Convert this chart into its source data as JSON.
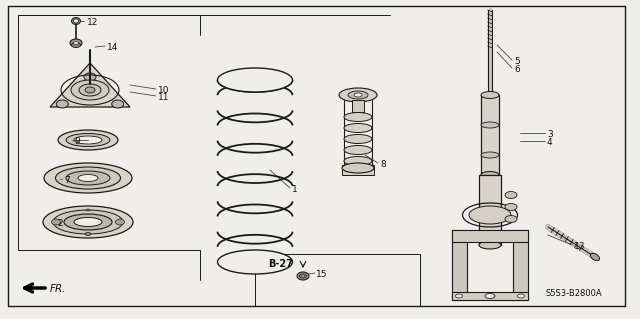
{
  "bg_color": "#f0eeea",
  "line_color": "#1a1a1a",
  "text_color": "#111111",
  "diagram_code": "S5S3-B2800A",
  "label_B27": "B-27",
  "fr_label": "FR."
}
